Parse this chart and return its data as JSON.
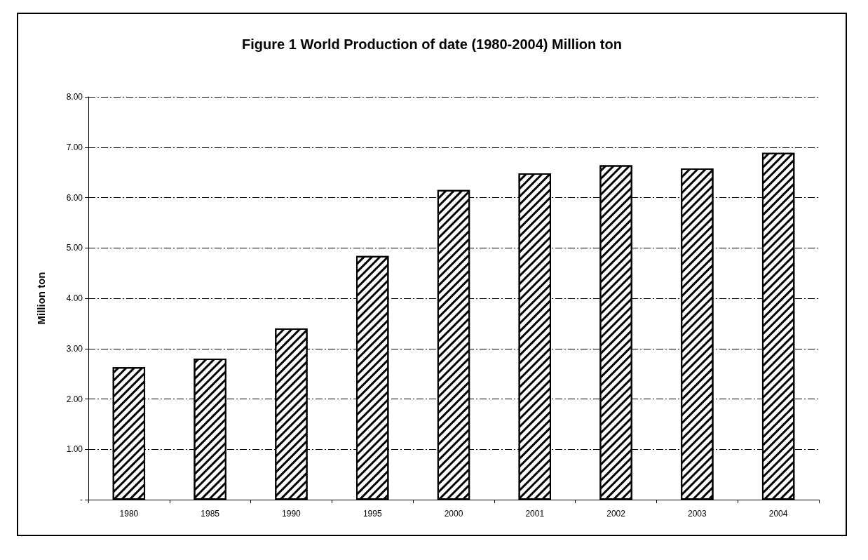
{
  "chart_data": {
    "type": "bar",
    "title": "Figure 1 World Production of date (1980-2004) Million ton",
    "ylabel": "Million ton",
    "categories": [
      "1980",
      "1985",
      "1990",
      "1995",
      "2000",
      "2001",
      "2002",
      "2003",
      "2004"
    ],
    "values": [
      2.63,
      2.8,
      3.4,
      4.84,
      6.15,
      6.48,
      6.64,
      6.58,
      6.89
    ],
    "color": "#000000",
    "ylim": [
      0,
      8
    ],
    "yticks": [
      {
        "value": 0,
        "label": "-"
      },
      {
        "value": 1,
        "label": "1.00"
      },
      {
        "value": 2,
        "label": "2.00"
      },
      {
        "value": 3,
        "label": "3.00"
      },
      {
        "value": 4,
        "label": "4.00"
      },
      {
        "value": 5,
        "label": "5.00"
      },
      {
        "value": 6,
        "label": "6.00"
      },
      {
        "value": 7,
        "label": "7.00"
      },
      {
        "value": 8,
        "label": "8.00"
      }
    ],
    "grid": "y"
  }
}
